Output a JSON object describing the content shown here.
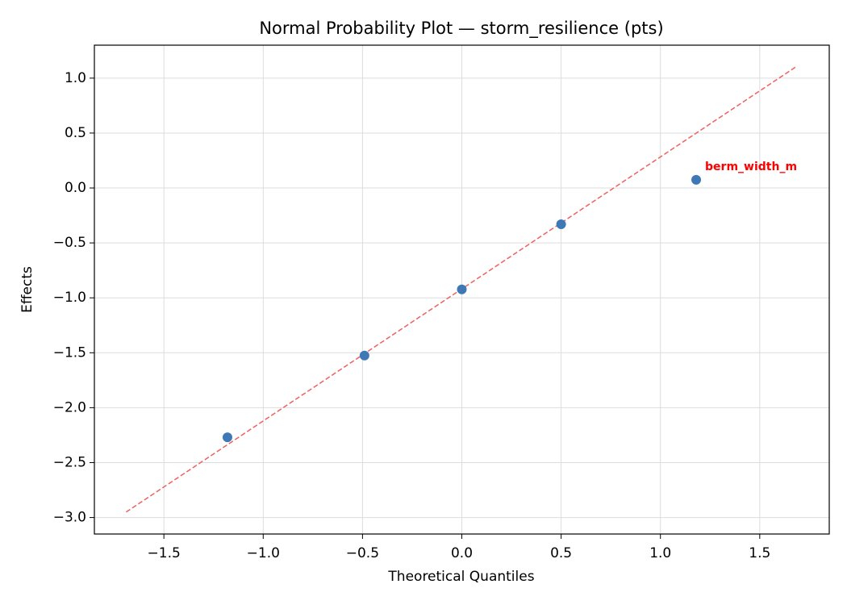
{
  "chart_data": {
    "type": "scatter",
    "title": "Normal Probability Plot — storm_resilience (pts)",
    "x_label": "Theoretical Quantiles",
    "y_label": "Effects",
    "series": [
      {
        "x": [
          -1.18,
          -0.49,
          0,
          0.5,
          1.18
        ],
        "values": [
          -2.27,
          -1.525,
          -0.923,
          -0.33,
          0.075
        ],
        "color": "#3f79b5",
        "labels": [
          null,
          null,
          null,
          null,
          "berm_width_m"
        ],
        "label_color": "#ff0000"
      }
    ],
    "reference_line": {
      "x": [
        -1.69,
        1.68
      ],
      "values": [
        -2.95,
        1.1
      ],
      "color": "#f06060",
      "dashed": true
    },
    "xlim": [
      -1.85,
      1.85
    ],
    "ylim": [
      -3.15,
      1.3
    ],
    "xticks": [
      {
        "value": -1.5,
        "label": "−1.5"
      },
      {
        "value": -1.0,
        "label": "−1.0"
      },
      {
        "value": -0.5,
        "label": "−0.5"
      },
      {
        "value": 0,
        "label": "0.0"
      },
      0.5,
      {
        "value": 1.0,
        "label": "1.0"
      },
      1.5
    ],
    "yticks": [
      {
        "value": -3.0,
        "label": "−3.0"
      },
      {
        "value": -2.5,
        "label": "−2.5"
      },
      {
        "value": -2.0,
        "label": "−2.0"
      },
      {
        "value": -1.5,
        "label": "−1.5"
      },
      {
        "value": -1.0,
        "label": "−1.0"
      },
      {
        "value": -0.5,
        "label": "−0.5"
      },
      {
        "value": 0,
        "label": "0.0"
      },
      0.5,
      {
        "value": 1.0,
        "label": "1.0"
      }
    ],
    "grid": true
  }
}
